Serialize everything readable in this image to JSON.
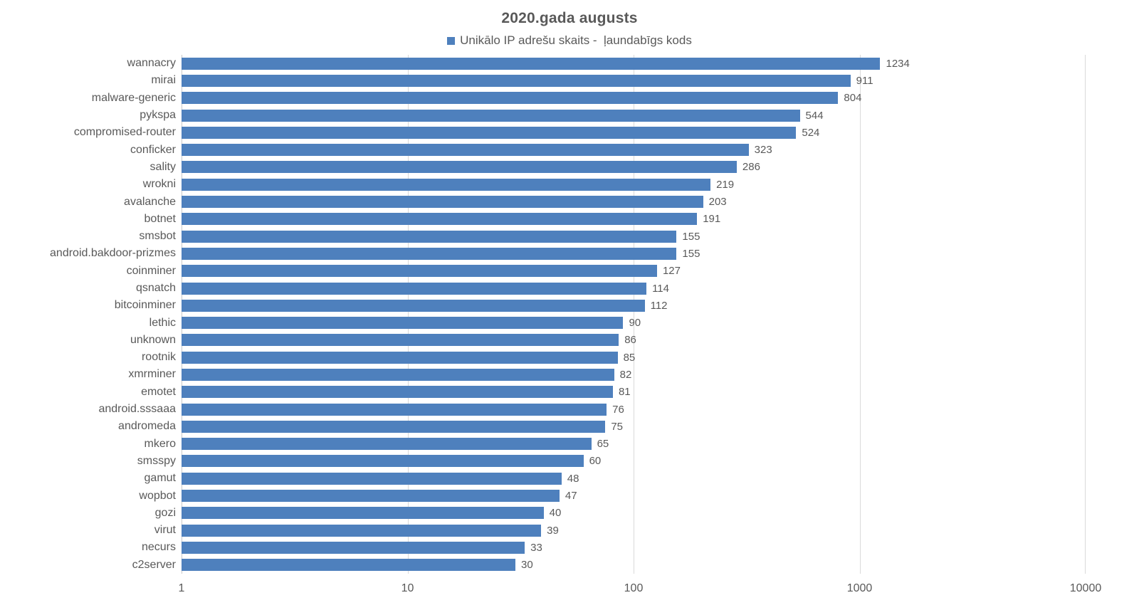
{
  "title": "2020.gada augusts",
  "legend": {
    "label": "Unikālo IP adrešu skaits -  ļaundabīgs kods"
  },
  "colors": {
    "bar": "#4e80bd",
    "text": "#595959",
    "gridline": "#dadada",
    "axis_line": "#c9c9c9"
  },
  "chart_data": {
    "type": "bar",
    "orientation": "horizontal",
    "title": "2020.gada augusts",
    "legend_entries": [
      "Unikālo IP adrešu skaits -  ļaundabīgs kods"
    ],
    "legend_position": "top",
    "x_scale": "log",
    "xlim": [
      1,
      10000
    ],
    "x_ticks": [
      "1",
      "10",
      "100",
      "1000",
      "10000"
    ],
    "grid": true,
    "value_labels": true,
    "categories": [
      "wannacry",
      "mirai",
      "malware-generic",
      "pykspa",
      "compromised-router",
      "conficker",
      "sality",
      "wrokni",
      "avalanche",
      "botnet",
      "smsbot",
      "android.bakdoor-prizmes",
      "coinminer",
      "qsnatch",
      "bitcoinminer",
      "lethic",
      "unknown",
      "rootnik",
      "xmrminer",
      "emotet",
      "android.sssaaa",
      "andromeda",
      "mkero",
      "smsspy",
      "gamut",
      "wopbot",
      "gozi",
      "virut",
      "necurs",
      "c2server"
    ],
    "values": [
      1234,
      911,
      804,
      544,
      524,
      323,
      286,
      219,
      203,
      191,
      155,
      155,
      127,
      114,
      112,
      90,
      86,
      85,
      82,
      81,
      76,
      75,
      65,
      60,
      48,
      47,
      40,
      39,
      33,
      30
    ]
  }
}
